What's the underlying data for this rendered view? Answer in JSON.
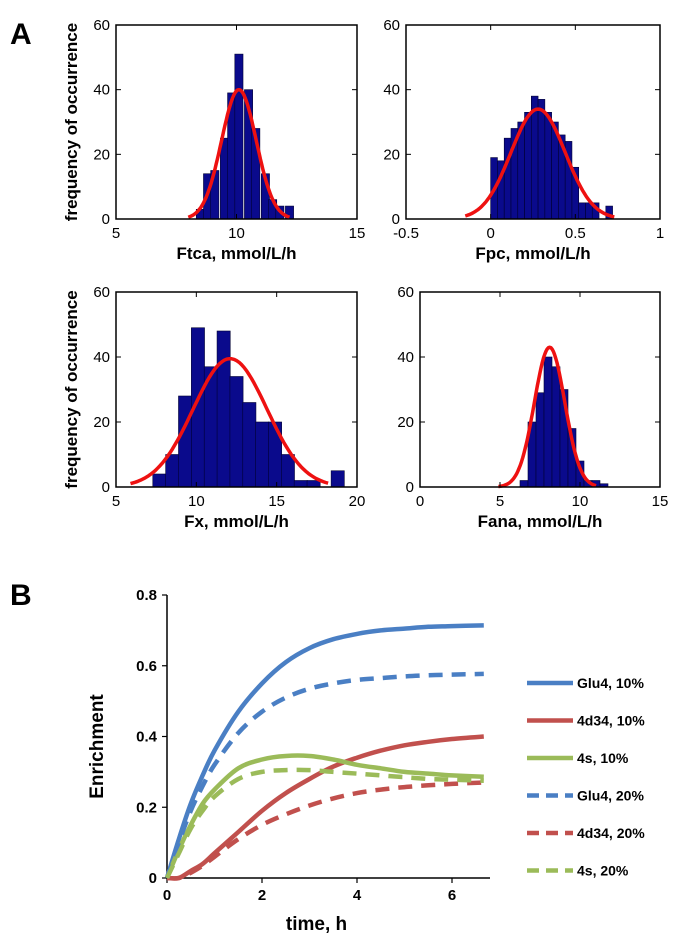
{
  "panel_labels": {
    "a": "A",
    "b": "B"
  },
  "colors": {
    "bar_fill": "#0a0a8c",
    "fit_line": "#ee1111",
    "glu4": "#4a7fc4",
    "d34": "#c1504d",
    "s4": "#9bbb59"
  },
  "chart_data": [
    {
      "type": "bar",
      "panel": "A",
      "xlabel": "Ftca, mmol/L/h",
      "ylabel": "frequency of occurrence",
      "xlim": [
        5,
        15
      ],
      "ylim": [
        0,
        60
      ],
      "xticks": [
        5,
        10,
        15
      ],
      "yticks": [
        0,
        20,
        40,
        60
      ],
      "bin_width": 0.34,
      "bins": [
        [
          8.5,
          3
        ],
        [
          8.8,
          14
        ],
        [
          9.1,
          15
        ],
        [
          9.5,
          25
        ],
        [
          9.8,
          39
        ],
        [
          10.1,
          51
        ],
        [
          10.5,
          40
        ],
        [
          10.8,
          28
        ],
        [
          11.2,
          14
        ],
        [
          11.5,
          6
        ],
        [
          11.8,
          4
        ],
        [
          12.2,
          4
        ]
      ],
      "fit": {
        "mean": 10.1,
        "sd": 0.72,
        "peak": 40,
        "range": [
          8.0,
          12.2
        ]
      }
    },
    {
      "type": "bar",
      "panel": "A",
      "xlabel": "Fpc, mmol/L/h",
      "ylabel": "",
      "xlim": [
        -0.5,
        1
      ],
      "ylim": [
        0,
        60
      ],
      "xticks": [
        -0.5,
        0,
        0.5,
        1
      ],
      "yticks": [
        0,
        20,
        40,
        60
      ],
      "bin_width": 0.04,
      "bins": [
        [
          0.02,
          19
        ],
        [
          0.06,
          18
        ],
        [
          0.1,
          25
        ],
        [
          0.14,
          28
        ],
        [
          0.18,
          30
        ],
        [
          0.22,
          33
        ],
        [
          0.26,
          38
        ],
        [
          0.3,
          37
        ],
        [
          0.34,
          33
        ],
        [
          0.38,
          30
        ],
        [
          0.42,
          26
        ],
        [
          0.46,
          24
        ],
        [
          0.5,
          16
        ],
        [
          0.54,
          5
        ],
        [
          0.58,
          5
        ],
        [
          0.62,
          5
        ],
        [
          0.7,
          4
        ]
      ],
      "fit": {
        "mean": 0.28,
        "sd": 0.16,
        "peak": 34,
        "range": [
          -0.15,
          0.73
        ]
      }
    },
    {
      "type": "bar",
      "panel": "A",
      "xlabel": "Fx, mmol/L/h",
      "ylabel": "frequency of occurrence",
      "xlim": [
        5,
        20
      ],
      "ylim": [
        0,
        60
      ],
      "xticks": [
        5,
        10,
        15,
        20
      ],
      "yticks": [
        0,
        20,
        40,
        60
      ],
      "bin_width": 0.82,
      "bins": [
        [
          7.7,
          4
        ],
        [
          8.5,
          10
        ],
        [
          9.3,
          28
        ],
        [
          10.1,
          49
        ],
        [
          10.9,
          37
        ],
        [
          11.7,
          48
        ],
        [
          12.5,
          34
        ],
        [
          13.3,
          26
        ],
        [
          14.1,
          20
        ],
        [
          14.9,
          20
        ],
        [
          15.7,
          10
        ],
        [
          16.5,
          2
        ],
        [
          17.3,
          2
        ],
        [
          18.8,
          5
        ]
      ],
      "fit": {
        "mean": 12.1,
        "sd": 2.3,
        "peak": 39.5,
        "range": [
          5.9,
          18.2
        ]
      }
    },
    {
      "type": "bar",
      "panel": "A",
      "xlabel": "Fana, mmol/L/h",
      "ylabel": "",
      "xlim": [
        0,
        15
      ],
      "ylim": [
        0,
        60
      ],
      "xticks": [
        0,
        5,
        10,
        15
      ],
      "yticks": [
        0,
        20,
        40,
        60
      ],
      "bin_width": 0.5,
      "bins": [
        [
          6.5,
          2
        ],
        [
          7.0,
          20
        ],
        [
          7.5,
          29
        ],
        [
          8.0,
          40
        ],
        [
          8.5,
          37
        ],
        [
          9.0,
          30
        ],
        [
          9.5,
          18
        ],
        [
          10.0,
          8
        ],
        [
          10.5,
          2
        ],
        [
          11.0,
          2
        ],
        [
          11.5,
          1
        ]
      ],
      "fit": {
        "mean": 8.1,
        "sd": 0.95,
        "peak": 43,
        "range": [
          4.9,
          11.0
        ]
      }
    },
    {
      "type": "line",
      "panel": "B",
      "xlabel": "time, h",
      "ylabel": "Enrichment",
      "xlim": [
        0,
        6.8
      ],
      "ylim": [
        0,
        0.8
      ],
      "xticks": [
        0,
        2,
        4,
        6
      ],
      "yticks": [
        0,
        0.2,
        0.4,
        0.6,
        0.8
      ],
      "legend_position": "right",
      "x": [
        0,
        0.25,
        0.5,
        0.75,
        1,
        1.5,
        2,
        2.5,
        3,
        3.5,
        4,
        4.5,
        5,
        5.5,
        6,
        6.67
      ],
      "series": [
        {
          "name": "Glu4, 10%",
          "style": "solid",
          "color_key": "glu4",
          "values": [
            0.0,
            0.11,
            0.21,
            0.29,
            0.36,
            0.47,
            0.55,
            0.61,
            0.65,
            0.675,
            0.69,
            0.7,
            0.705,
            0.71,
            0.712,
            0.714
          ]
        },
        {
          "name": "4d34, 10%",
          "style": "solid",
          "color_key": "d34",
          "values": [
            0.0,
            0.0,
            0.02,
            0.04,
            0.07,
            0.13,
            0.19,
            0.24,
            0.28,
            0.315,
            0.34,
            0.36,
            0.375,
            0.385,
            0.393,
            0.4
          ]
        },
        {
          "name": "4s, 10%",
          "style": "solid",
          "color_key": "s4",
          "values": [
            0.0,
            0.08,
            0.15,
            0.21,
            0.25,
            0.31,
            0.335,
            0.345,
            0.345,
            0.335,
            0.32,
            0.31,
            0.3,
            0.295,
            0.29,
            0.286
          ]
        },
        {
          "name": "Glu4, 20%",
          "style": "dashed",
          "color_key": "glu4",
          "values": [
            0.0,
            0.1,
            0.19,
            0.26,
            0.32,
            0.41,
            0.47,
            0.51,
            0.535,
            0.55,
            0.56,
            0.565,
            0.57,
            0.573,
            0.575,
            0.577
          ]
        },
        {
          "name": "4d34, 20%",
          "style": "dashed",
          "color_key": "d34",
          "values": [
            0.0,
            0.0,
            0.015,
            0.035,
            0.06,
            0.11,
            0.15,
            0.18,
            0.205,
            0.225,
            0.24,
            0.25,
            0.257,
            0.262,
            0.266,
            0.27
          ]
        },
        {
          "name": "4s, 20%",
          "style": "dashed",
          "color_key": "s4",
          "values": [
            0.0,
            0.07,
            0.14,
            0.19,
            0.23,
            0.28,
            0.3,
            0.305,
            0.305,
            0.3,
            0.295,
            0.29,
            0.285,
            0.28,
            0.278,
            0.275
          ]
        }
      ]
    }
  ]
}
